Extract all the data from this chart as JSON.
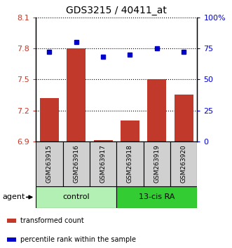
{
  "title": "GDS3215 / 40411_at",
  "samples": [
    "GSM263915",
    "GSM263916",
    "GSM263917",
    "GSM263918",
    "GSM263919",
    "GSM263920"
  ],
  "bar_values": [
    7.32,
    7.8,
    6.91,
    7.1,
    7.5,
    7.35
  ],
  "percentile_values": [
    72,
    80,
    68,
    70,
    75,
    72
  ],
  "ylim_left": [
    6.9,
    8.1
  ],
  "ylim_right": [
    0,
    100
  ],
  "yticks_left": [
    6.9,
    7.2,
    7.5,
    7.8,
    8.1
  ],
  "yticks_right": [
    0,
    25,
    50,
    75,
    100
  ],
  "ytick_labels_left": [
    "6.9",
    "7.2",
    "7.5",
    "7.8",
    "8.1"
  ],
  "ytick_labels_right": [
    "0",
    "25",
    "50",
    "75",
    "100%"
  ],
  "bar_color": "#c0392b",
  "dot_color": "#0000cc",
  "bar_bottom": 6.9,
  "groups": [
    {
      "label": "control",
      "indices": [
        0,
        1,
        2
      ],
      "color": "#b3f0b3"
    },
    {
      "label": "13-cis RA",
      "indices": [
        3,
        4,
        5
      ],
      "color": "#33cc33"
    }
  ],
  "agent_label": "agent",
  "legend_items": [
    {
      "color": "#c0392b",
      "label": "transformed count"
    },
    {
      "color": "#0000cc",
      "label": "percentile rank within the sample"
    }
  ],
  "sample_box_color": "#d0d0d0",
  "grid_color": "black",
  "grid_linestyle": "dotted",
  "grid_linewidth": 0.8
}
